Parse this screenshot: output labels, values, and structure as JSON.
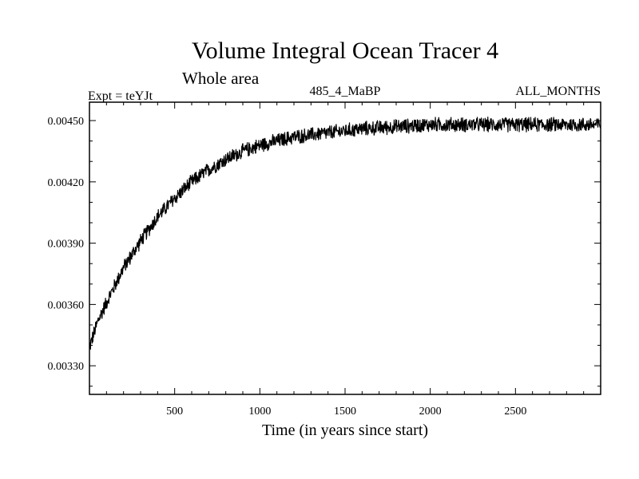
{
  "chart_data": {
    "type": "line",
    "title": "Volume Integral Ocean Tracer 4",
    "subtitle": "Whole area",
    "experiment_label": "Expt = teYJt",
    "run_label": "485_4_MaBP",
    "months_label": "ALL_MONTHS",
    "xlabel": "Time (in years since start)",
    "ylabel": "",
    "xlim": [
      0,
      3000
    ],
    "ylim": [
      0.00316,
      0.00459
    ],
    "x_ticks": [
      500,
      1000,
      1500,
      2000,
      2500
    ],
    "x_tick_labels": [
      "500",
      "1000",
      "1500",
      "2000",
      "2500"
    ],
    "y_ticks": [
      0.0033,
      0.0036,
      0.0039,
      0.0042,
      0.0045
    ],
    "y_tick_labels": [
      "0.00330",
      "0.00360",
      "0.00390",
      "0.00420",
      "0.00450"
    ],
    "grid": false,
    "series": [
      {
        "name": "Volume Integral Ocean Tracer 4",
        "color": "#000000",
        "trend_x": [
          0,
          50,
          100,
          200,
          300,
          400,
          500,
          600,
          700,
          800,
          900,
          1000,
          1200,
          1400,
          1600,
          1800,
          2000,
          2500,
          3000
        ],
        "trend_y": [
          0.00339,
          0.00352,
          0.00361,
          0.00378,
          0.00391,
          0.00403,
          0.00412,
          0.0042,
          0.00426,
          0.00431,
          0.00435,
          0.00438,
          0.00442,
          0.00444,
          0.00446,
          0.00447,
          0.00448,
          0.00448,
          0.00448
        ],
        "noise_amplitude": 4e-05
      }
    ]
  }
}
